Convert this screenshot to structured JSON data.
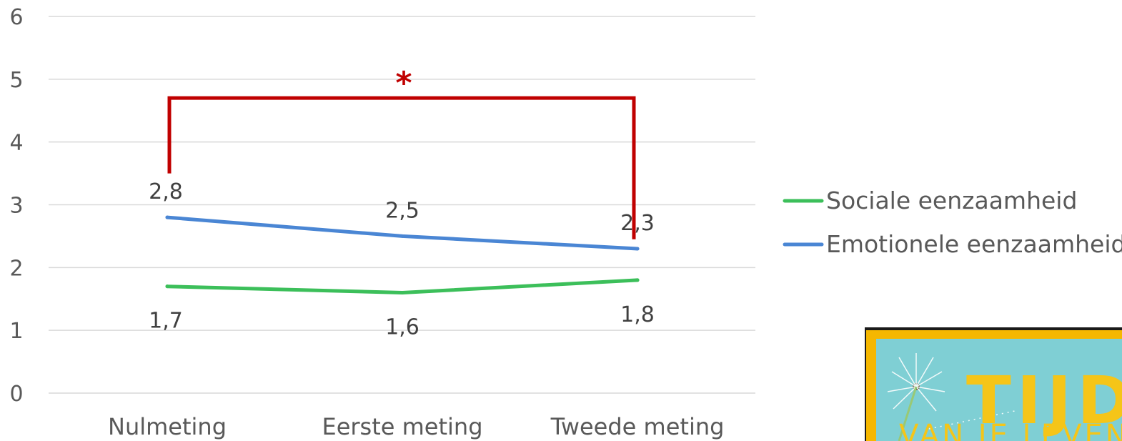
{
  "chart_data": {
    "type": "line",
    "title": "",
    "xlabel": "",
    "ylabel": "",
    "categories": [
      "Nulmeting",
      "Eerste meting",
      "Tweede meting"
    ],
    "ylim": [
      0,
      6
    ],
    "yticks": [
      "0",
      "1",
      "2",
      "3",
      "4",
      "5",
      "6"
    ],
    "grid": true,
    "legend_position": "right",
    "series": [
      {
        "name": "Sociale eenzaamheid",
        "values": [
          1.7,
          1.6,
          1.8
        ],
        "labels": [
          "1,7",
          "1,6",
          "1,8"
        ],
        "color": "#3cbf5a"
      },
      {
        "name": "Emotionele eenzaamheid",
        "values": [
          2.8,
          2.5,
          2.3
        ],
        "labels": [
          "2,8",
          "2,5",
          "2,3"
        ],
        "color": "#4a86d4"
      }
    ],
    "annotation": {
      "text": "*",
      "color": "#c00000",
      "from_category": 0,
      "to_category": 2,
      "bracket_top": 4.7,
      "left_end": 3.5,
      "right_end": 2.45
    }
  },
  "logo": {
    "title": "TIJD",
    "subtitle": "VAN JE LEVEN",
    "colors": {
      "frame": "#f5b700",
      "background": "#7fcfd4",
      "text": "#f5c518"
    }
  }
}
